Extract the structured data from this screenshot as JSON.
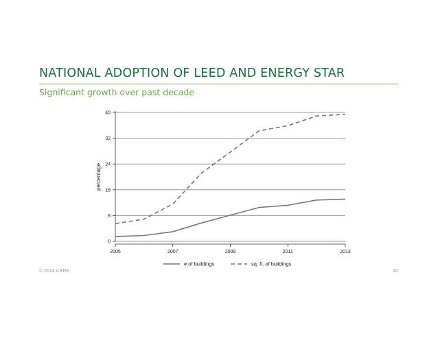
{
  "slide": {
    "title": "NATIONAL ADOPTION OF LEED AND ENERGY STAR",
    "subtitle": "Significant growth over past decade",
    "copyright": "© 2014 CBRE",
    "page_number": "10"
  },
  "colors": {
    "title": "#1f6b3d",
    "subtitle": "#6aa84f",
    "rule": "#76b04d",
    "line": "#777777",
    "grid": "#999999"
  },
  "chart_data": {
    "type": "line",
    "title": "",
    "xlabel": "",
    "ylabel": "percentage",
    "xlim": [
      2005,
      2013
    ],
    "ylim": [
      0,
      40
    ],
    "xticks": [
      "2005",
      "2007",
      "2009",
      "2011",
      "2013"
    ],
    "yticks": [
      "0",
      "8",
      "16",
      "24",
      "32",
      "40"
    ],
    "grid": true,
    "legend_position": "bottom",
    "series": [
      {
        "name": "# of buildings",
        "style": "solid",
        "x": [
          2005,
          2006,
          2007,
          2008,
          2009,
          2010,
          2011,
          2012,
          2013
        ],
        "values": [
          1.5,
          1.8,
          3,
          5.7,
          8.1,
          10.5,
          11.2,
          12.8,
          13.1
        ]
      },
      {
        "name": "sq. ft. of buildings",
        "style": "dashed",
        "x": [
          2005,
          2006,
          2007,
          2008,
          2009,
          2010,
          2011,
          2012,
          2013
        ],
        "values": [
          5.5,
          6.9,
          11.6,
          21.2,
          27.7,
          34.3,
          35.9,
          38.9,
          39.4
        ]
      }
    ]
  }
}
